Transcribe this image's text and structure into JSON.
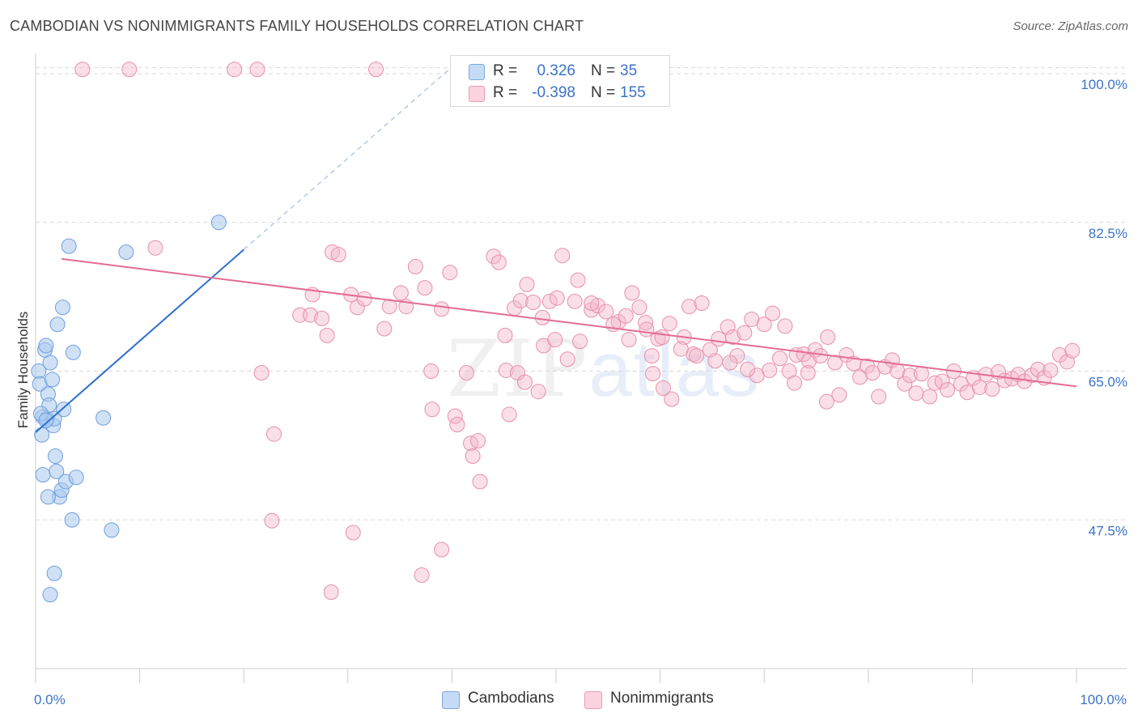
{
  "header": {
    "title": "CAMBODIAN VS NONIMMIGRANTS FAMILY HOUSEHOLDS CORRELATION CHART",
    "source": "Source: ZipAtlas.com"
  },
  "watermark": {
    "zip": "ZIP",
    "atlas": "atlas"
  },
  "legend": {
    "rows": [
      {
        "r_label": "R =",
        "r_value": "0.326",
        "n_label": "N =",
        "n_value": "35",
        "color": "#a9c8ef"
      },
      {
        "r_label": "R =",
        "r_value": "-0.398",
        "n_label": "N =",
        "n_value": "155",
        "color": "#f5b8cb"
      }
    ]
  },
  "bottom_legend": [
    {
      "label": "Cambodians",
      "color": "#a9c8ef"
    },
    {
      "label": "Nonimmigrants",
      "color": "#f5b8cb"
    }
  ],
  "colors": {
    "blue_fill": "#a9c8ef",
    "blue_stroke": "#6f9fdc",
    "blue_line": "#2e6fd0",
    "pink_fill": "#f5b8cb",
    "pink_stroke": "#e890ab",
    "pink_line": "#e36b96",
    "grid": "#d9d9d9",
    "tick_text": "#3b73c9"
  },
  "chart_data": {
    "type": "scatter",
    "title": "CAMBODIAN VS NONIMMIGRANTS FAMILY HOUSEHOLDS CORRELATION CHART",
    "xlabel": "",
    "ylabel": "Family Households",
    "xlim": [
      0,
      100
    ],
    "ylim": [
      30,
      102
    ],
    "x_tick_labels": [
      {
        "value": 0,
        "label": "0.0%"
      },
      {
        "value": 100,
        "label": "100.0%"
      }
    ],
    "y_tick_labels": [
      {
        "value": 47.5,
        "label": "47.5%"
      },
      {
        "value": 65.0,
        "label": "65.0%"
      },
      {
        "value": 82.5,
        "label": "82.5%"
      },
      {
        "value": 100.0,
        "label": "100.0%"
      }
    ],
    "series": [
      {
        "name": "Cambodians",
        "trend": {
          "x0": 0,
          "y0": 57.8,
          "x1": 20,
          "y1": 79.3,
          "dashed_to_x": 40,
          "dashed_to_y": 100.8
        },
        "points": [
          [
            0.3,
            65.0
          ],
          [
            0.4,
            63.5
          ],
          [
            0.6,
            57.5
          ],
          [
            0.7,
            59.6
          ],
          [
            0.9,
            67.5
          ],
          [
            1.0,
            68.0
          ],
          [
            1.1,
            59.4
          ],
          [
            1.2,
            62.3
          ],
          [
            1.3,
            61.0
          ],
          [
            1.4,
            66.0
          ],
          [
            1.6,
            64.0
          ],
          [
            1.7,
            58.6
          ],
          [
            1.8,
            59.4
          ],
          [
            1.9,
            55.0
          ],
          [
            2.0,
            53.2
          ],
          [
            2.1,
            70.5
          ],
          [
            2.3,
            50.2
          ],
          [
            2.5,
            51.0
          ],
          [
            2.6,
            72.5
          ],
          [
            2.7,
            60.5
          ],
          [
            2.9,
            52.0
          ],
          [
            3.2,
            79.7
          ],
          [
            3.5,
            47.5
          ],
          [
            3.6,
            67.2
          ],
          [
            3.9,
            52.5
          ],
          [
            6.5,
            59.5
          ],
          [
            7.3,
            46.3
          ],
          [
            8.7,
            79.0
          ],
          [
            17.6,
            82.5
          ],
          [
            0.7,
            52.8
          ],
          [
            1.2,
            50.2
          ],
          [
            1.4,
            38.7
          ],
          [
            1.8,
            41.2
          ],
          [
            0.5,
            60.0
          ],
          [
            1.0,
            59.2
          ]
        ]
      },
      {
        "name": "Nonimmigrants",
        "trend": {
          "x0": 2.5,
          "y0": 78.2,
          "x1": 100,
          "y1": 63.2
        },
        "points": [
          [
            4.5,
            100.5
          ],
          [
            9.0,
            100.5
          ],
          [
            19.1,
            100.5
          ],
          [
            21.3,
            100.5
          ],
          [
            32.7,
            100.5
          ],
          [
            11.5,
            79.5
          ],
          [
            21.7,
            64.8
          ],
          [
            22.9,
            57.6
          ],
          [
            25.4,
            71.6
          ],
          [
            26.4,
            71.6
          ],
          [
            26.6,
            74.0
          ],
          [
            27.5,
            71.2
          ],
          [
            28.0,
            69.2
          ],
          [
            28.5,
            79.0
          ],
          [
            29.1,
            78.7
          ],
          [
            30.3,
            74.0
          ],
          [
            30.9,
            72.5
          ],
          [
            31.6,
            73.5
          ],
          [
            33.5,
            70.0
          ],
          [
            34.0,
            72.6
          ],
          [
            35.1,
            74.2
          ],
          [
            35.6,
            72.6
          ],
          [
            36.5,
            77.3
          ],
          [
            37.4,
            74.8
          ],
          [
            38.0,
            65.0
          ],
          [
            38.1,
            60.5
          ],
          [
            39.0,
            72.3
          ],
          [
            39.8,
            76.6
          ],
          [
            40.3,
            59.7
          ],
          [
            41.4,
            64.8
          ],
          [
            41.8,
            56.5
          ],
          [
            42.5,
            56.8
          ],
          [
            44.0,
            78.5
          ],
          [
            44.5,
            77.8
          ],
          [
            45.1,
            69.2
          ],
          [
            45.2,
            65.1
          ],
          [
            46.0,
            72.4
          ],
          [
            46.3,
            64.8
          ],
          [
            46.6,
            73.3
          ],
          [
            47.2,
            75.2
          ],
          [
            47.8,
            73.1
          ],
          [
            48.3,
            62.6
          ],
          [
            48.8,
            68.0
          ],
          [
            49.4,
            73.2
          ],
          [
            50.1,
            73.6
          ],
          [
            50.6,
            78.6
          ],
          [
            51.1,
            66.4
          ],
          [
            51.8,
            73.2
          ],
          [
            52.1,
            75.7
          ],
          [
            53.4,
            72.2
          ],
          [
            54.0,
            72.7
          ],
          [
            54.8,
            72.0
          ],
          [
            56.0,
            70.8
          ],
          [
            56.7,
            71.5
          ],
          [
            57.3,
            74.2
          ],
          [
            58.0,
            72.5
          ],
          [
            58.6,
            70.7
          ],
          [
            59.2,
            66.8
          ],
          [
            59.8,
            68.8
          ],
          [
            60.2,
            69.0
          ],
          [
            60.9,
            70.6
          ],
          [
            61.1,
            61.7
          ],
          [
            62.3,
            69.0
          ],
          [
            62.8,
            72.6
          ],
          [
            63.2,
            67.0
          ],
          [
            64.0,
            73.0
          ],
          [
            64.8,
            67.5
          ],
          [
            65.3,
            66.2
          ],
          [
            66.5,
            70.2
          ],
          [
            67.0,
            69.0
          ],
          [
            67.4,
            66.8
          ],
          [
            68.1,
            69.5
          ],
          [
            68.8,
            71.1
          ],
          [
            69.3,
            64.5
          ],
          [
            70.0,
            70.5
          ],
          [
            70.8,
            71.8
          ],
          [
            71.5,
            66.5
          ],
          [
            72.0,
            70.3
          ],
          [
            72.4,
            65.0
          ],
          [
            73.1,
            66.9
          ],
          [
            73.8,
            67.0
          ],
          [
            74.3,
            66.2
          ],
          [
            74.9,
            67.5
          ],
          [
            75.4,
            66.8
          ],
          [
            76.1,
            69.0
          ],
          [
            76.8,
            66.0
          ],
          [
            77.2,
            62.2
          ],
          [
            77.9,
            66.9
          ],
          [
            78.6,
            65.9
          ],
          [
            79.2,
            64.3
          ],
          [
            79.9,
            65.6
          ],
          [
            80.4,
            64.8
          ],
          [
            81.0,
            62.0
          ],
          [
            81.6,
            65.5
          ],
          [
            82.3,
            66.3
          ],
          [
            82.8,
            65.0
          ],
          [
            83.5,
            63.5
          ],
          [
            84.0,
            64.5
          ],
          [
            84.6,
            62.4
          ],
          [
            85.1,
            64.7
          ],
          [
            85.9,
            62.0
          ],
          [
            86.4,
            63.6
          ],
          [
            87.1,
            63.8
          ],
          [
            87.6,
            62.8
          ],
          [
            88.2,
            65.0
          ],
          [
            88.9,
            63.5
          ],
          [
            89.5,
            62.5
          ],
          [
            90.1,
            64.2
          ],
          [
            90.7,
            63.1
          ],
          [
            91.3,
            64.6
          ],
          [
            91.9,
            62.9
          ],
          [
            92.5,
            64.9
          ],
          [
            93.1,
            63.9
          ],
          [
            93.8,
            64.1
          ],
          [
            94.4,
            64.6
          ],
          [
            95.0,
            63.8
          ],
          [
            95.7,
            64.5
          ],
          [
            96.3,
            65.2
          ],
          [
            96.9,
            64.2
          ],
          [
            97.5,
            65.1
          ],
          [
            98.4,
            66.9
          ],
          [
            99.1,
            66.1
          ],
          [
            99.6,
            67.4
          ],
          [
            22.7,
            47.4
          ],
          [
            28.4,
            39.0
          ],
          [
            30.5,
            46.0
          ],
          [
            37.1,
            41.0
          ],
          [
            39.0,
            44.0
          ],
          [
            40.5,
            58.7
          ],
          [
            42.7,
            52.0
          ],
          [
            42.0,
            55.0
          ],
          [
            45.5,
            59.9
          ],
          [
            47.0,
            63.7
          ],
          [
            48.7,
            71.3
          ],
          [
            49.9,
            68.7
          ],
          [
            52.3,
            68.5
          ],
          [
            53.4,
            73.0
          ],
          [
            55.5,
            70.5
          ],
          [
            57.0,
            68.7
          ],
          [
            58.7,
            69.9
          ],
          [
            59.3,
            64.7
          ],
          [
            60.3,
            63.0
          ],
          [
            62.0,
            67.6
          ],
          [
            63.5,
            66.8
          ],
          [
            65.6,
            68.8
          ],
          [
            66.7,
            66.0
          ],
          [
            68.4,
            65.2
          ],
          [
            70.5,
            65.1
          ],
          [
            72.9,
            63.6
          ],
          [
            74.2,
            64.8
          ],
          [
            76.0,
            61.4
          ]
        ]
      }
    ]
  }
}
